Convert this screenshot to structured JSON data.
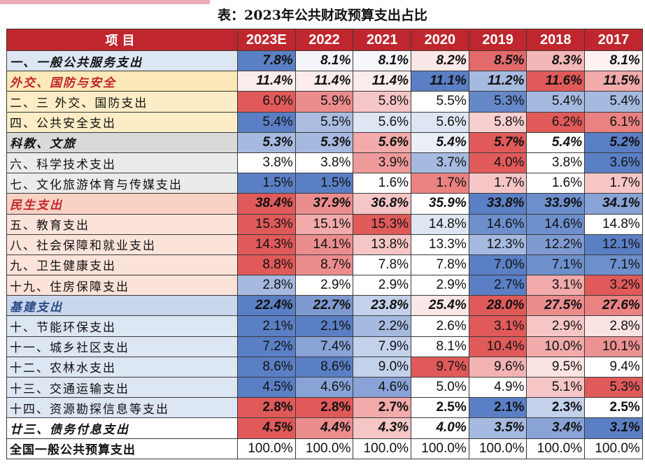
{
  "title": "表：2023年公共财政预算支出占比",
  "header": {
    "item": "项目",
    "years": [
      "2023E",
      "2022",
      "2021",
      "2020",
      "2019",
      "2018",
      "2017"
    ]
  },
  "colors": {
    "header_bg": "#c0262d",
    "group_general_bg": "#dde6f3",
    "group_defense_bg": "#fce8b8",
    "group_science_bg": "#d9d9d9",
    "group_livelihood_bg": "#f8d2c4",
    "group_infra_bg": "#c9d6ec",
    "group_livelihood_text": "#c0262d",
    "group_infra_text": "#2c4a86"
  },
  "rows": [
    {
      "name": "一、一般公共服务支出",
      "kind": "group",
      "name_bg": "#dde6f3",
      "name_color": "#111111",
      "values": [
        "7.8%",
        "8.1%",
        "8.1%",
        "8.2%",
        "8.5%",
        "8.3%",
        "8.1%"
      ],
      "cell_bgs": [
        "#5b7fc4",
        "#f3f5fb",
        "#f6f7fb",
        "#fbe7e7",
        "#e36a6a",
        "#f4b7b7",
        "#fdf1f1"
      ]
    },
    {
      "name": "外交、国防与安全",
      "kind": "group",
      "name_bg": "#fce8b8",
      "name_color": "#c0262d",
      "values": [
        "11.4%",
        "11.4%",
        "11.4%",
        "11.1%",
        "11.2%",
        "11.6%",
        "11.5%"
      ],
      "cell_bgs": [
        "#fbecec",
        "#fbecec",
        "#fbecec",
        "#5b7fc4",
        "#a6bae0",
        "#e05a5a",
        "#f2aaaa"
      ]
    },
    {
      "name": "二、三 外交、国防支出",
      "kind": "item",
      "name_bg": "#fcedc6",
      "name_color": "#111111",
      "values": [
        "6.0%",
        "5.9%",
        "5.8%",
        "5.5%",
        "5.3%",
        "5.4%",
        "5.4%"
      ],
      "cell_bgs": [
        "#e05a5a",
        "#ec8d8d",
        "#f6c6c6",
        "#ffffff",
        "#6688c8",
        "#a6bae0",
        "#a6bae0"
      ]
    },
    {
      "name": "四、公共安全支出",
      "kind": "item",
      "name_bg": "#fcedc6",
      "name_color": "#111111",
      "values": [
        "5.4%",
        "5.5%",
        "5.6%",
        "5.6%",
        "5.8%",
        "6.2%",
        "6.1%"
      ],
      "cell_bgs": [
        "#5b7fc4",
        "#aabde1",
        "#dfe6f3",
        "#dfe6f3",
        "#f7cfcf",
        "#e05a5a",
        "#ea8282"
      ]
    },
    {
      "name": "科教、文旅",
      "kind": "group",
      "name_bg": "#d9d9d9",
      "name_color": "#111111",
      "values": [
        "5.3%",
        "5.3%",
        "5.6%",
        "5.4%",
        "5.7%",
        "5.4%",
        "5.2%"
      ],
      "cell_bgs": [
        "#a6bae0",
        "#a6bae0",
        "#f2aaaa",
        "#eaeef7",
        "#e05a5a",
        "#ffffff",
        "#5b7fc4"
      ]
    },
    {
      "name": "六、科学技术支出",
      "kind": "item",
      "name_bg": "#ebebeb",
      "name_color": "#111111",
      "values": [
        "3.8%",
        "3.8%",
        "3.9%",
        "3.7%",
        "4.0%",
        "3.8%",
        "3.6%"
      ],
      "cell_bgs": [
        "#ffffff",
        "#ffffff",
        "#ee9a9a",
        "#a6bae0",
        "#e05a5a",
        "#ffffff",
        "#5b7fc4"
      ]
    },
    {
      "name": "七、文化旅游体育与传媒支出",
      "kind": "item",
      "name_bg": "#ebebeb",
      "name_color": "#111111",
      "values": [
        "1.5%",
        "1.5%",
        "1.6%",
        "1.7%",
        "1.7%",
        "1.6%",
        "1.7%"
      ],
      "cell_bgs": [
        "#5b7fc4",
        "#5b7fc4",
        "#ffffff",
        "#ea8282",
        "#f6c6c6",
        "#ffffff",
        "#f6c6c6"
      ]
    },
    {
      "name": "民生支出",
      "kind": "group",
      "name_bg": "#f8d2c4",
      "name_color": "#c0262d",
      "values": [
        "38.4%",
        "37.9%",
        "36.8%",
        "35.9%",
        "33.8%",
        "33.9%",
        "34.1%"
      ],
      "cell_bgs": [
        "#e05a5a",
        "#ec8d8d",
        "#f6c6c6",
        "#ffffff",
        "#5b7fc4",
        "#6d8fcb",
        "#89a3d6"
      ]
    },
    {
      "name": "五、教育支出",
      "kind": "item",
      "name_bg": "#fbe3da",
      "name_color": "#111111",
      "values": [
        "15.3%",
        "15.1%",
        "15.3%",
        "14.8%",
        "14.6%",
        "14.6%",
        "14.8%"
      ],
      "cell_bgs": [
        "#e05a5a",
        "#f2aaaa",
        "#e05a5a",
        "#dfe6f3",
        "#6d8fcb",
        "#6d8fcb",
        "#ffffff"
      ]
    },
    {
      "name": "八、社会保障和就业支出",
      "kind": "item",
      "name_bg": "#fbe3da",
      "name_color": "#111111",
      "values": [
        "14.3%",
        "14.1%",
        "13.8%",
        "13.3%",
        "12.3%",
        "12.2%",
        "12.1%"
      ],
      "cell_bgs": [
        "#e05a5a",
        "#ec8d8d",
        "#f6c6c6",
        "#ffffff",
        "#a6bae0",
        "#7e9ad0",
        "#5b7fc4"
      ]
    },
    {
      "name": "九、卫生健康支出",
      "kind": "item",
      "name_bg": "#fbe3da",
      "name_color": "#111111",
      "values": [
        "8.8%",
        "8.7%",
        "7.8%",
        "7.8%",
        "7.0%",
        "7.1%",
        "7.1%"
      ],
      "cell_bgs": [
        "#e05a5a",
        "#ec8d8d",
        "#ffffff",
        "#ffffff",
        "#5b7fc4",
        "#6d8fcb",
        "#6d8fcb"
      ]
    },
    {
      "name": "十九、住房保障支出",
      "kind": "item",
      "name_bg": "#fbe3da",
      "name_color": "#111111",
      "values": [
        "2.8%",
        "2.9%",
        "2.9%",
        "2.9%",
        "2.7%",
        "3.1%",
        "3.2%"
      ],
      "cell_bgs": [
        "#a6bae0",
        "#ffffff",
        "#ffffff",
        "#ffffff",
        "#5b7fc4",
        "#f2aaaa",
        "#e05a5a"
      ]
    },
    {
      "name": "基建支出",
      "kind": "group",
      "name_bg": "#c9d6ec",
      "name_color": "#2c4a86",
      "values": [
        "22.4%",
        "22.7%",
        "23.8%",
        "25.4%",
        "28.0%",
        "27.5%",
        "27.6%"
      ],
      "cell_bgs": [
        "#5b7fc4",
        "#7e9ad0",
        "#c3d1ea",
        "#fbe7e7",
        "#e05a5a",
        "#ec8d8d",
        "#ea8282"
      ]
    },
    {
      "name": "十、节能环保支出",
      "kind": "item",
      "name_bg": "#dde6f3",
      "name_color": "#111111",
      "values": [
        "2.1%",
        "2.1%",
        "2.2%",
        "2.6%",
        "3.1%",
        "2.9%",
        "2.8%"
      ],
      "cell_bgs": [
        "#5b7fc4",
        "#5b7fc4",
        "#a6bae0",
        "#ffffff",
        "#e05a5a",
        "#f6c6c6",
        "#fbe3e3"
      ]
    },
    {
      "name": "十一、城乡社区支出",
      "kind": "item",
      "name_bg": "#dde6f3",
      "name_color": "#111111",
      "values": [
        "7.2%",
        "7.4%",
        "7.9%",
        "8.1%",
        "10.4%",
        "10.0%",
        "10.1%"
      ],
      "cell_bgs": [
        "#5b7fc4",
        "#89a3d6",
        "#c3d1ea",
        "#ffffff",
        "#e05a5a",
        "#f2aaaa",
        "#ec9292"
      ]
    },
    {
      "name": "十二、农林水支出",
      "kind": "item",
      "name_bg": "#dde6f3",
      "name_color": "#111111",
      "values": [
        "8.6%",
        "8.6%",
        "9.0%",
        "9.7%",
        "9.6%",
        "9.5%",
        "9.4%"
      ],
      "cell_bgs": [
        "#5b7fc4",
        "#5b7fc4",
        "#c3d1ea",
        "#e05a5a",
        "#f3b3b3",
        "#fbe3e3",
        "#ffffff"
      ]
    },
    {
      "name": "十三、交通运输支出",
      "kind": "item",
      "name_bg": "#dde6f3",
      "name_color": "#111111",
      "values": [
        "4.5%",
        "4.6%",
        "4.6%",
        "5.0%",
        "4.9%",
        "5.1%",
        "5.3%"
      ],
      "cell_bgs": [
        "#5b7fc4",
        "#89a3d6",
        "#89a3d6",
        "#ffffff",
        "#ffffff",
        "#f6c6c6",
        "#e05a5a"
      ]
    },
    {
      "name": "十四、资源勘探信息等支出",
      "kind": "item",
      "name_bg": "#dde6f3",
      "name_color": "#111111",
      "values": [
        "2.8%",
        "2.8%",
        "2.7%",
        "2.5%",
        "2.1%",
        "2.3%",
        "2.5%"
      ],
      "cell_bgs": [
        "#e05a5a",
        "#e05a5a",
        "#f2aaaa",
        "#ffffff",
        "#5b7fc4",
        "#c3d1ea",
        "#ffffff"
      ],
      "bold_values": true
    },
    {
      "name": "廿三、债务付息支出",
      "kind": "group",
      "name_bg": "#ffffff",
      "name_color": "#111111",
      "values": [
        "4.5%",
        "4.4%",
        "4.3%",
        "4.0%",
        "3.5%",
        "3.4%",
        "3.1%"
      ],
      "cell_bgs": [
        "#e05a5a",
        "#ec8d8d",
        "#f6c6c6",
        "#ffffff",
        "#a6bae0",
        "#89a3d6",
        "#5b7fc4"
      ]
    },
    {
      "name": "全国一般公共预算支出",
      "kind": "total",
      "name_bg": "#ffffff",
      "name_color": "#111111",
      "values": [
        "100.0%",
        "100.0%",
        "100.0%",
        "100.0%",
        "100.0%",
        "100.0%",
        "100.0%"
      ],
      "cell_bgs": [
        "#ffffff",
        "#ffffff",
        "#ffffff",
        "#ffffff",
        "#ffffff",
        "#ffffff",
        "#ffffff"
      ]
    }
  ]
}
